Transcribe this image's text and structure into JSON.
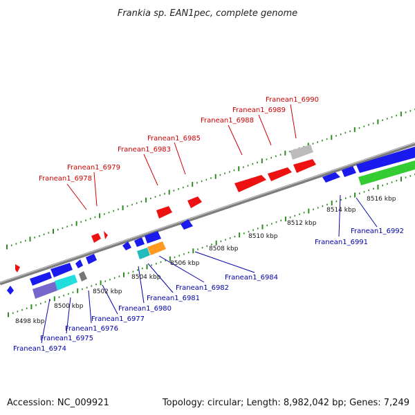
{
  "title": "Frankia sp. EAN1pec, complete genome",
  "footer": {
    "accession": "Accession: NC_009921",
    "summary": "Topology: circular; Length: 8,982,042 bp; Genes: 7,249"
  },
  "colors": {
    "backbone": "#8a8a8a",
    "ticks": "#2e8b22",
    "forward_label": "#cc0000",
    "reverse_label": "#0000aa",
    "red_gene": "#ee1111",
    "blue_gene": "#1a1aee",
    "gray_gene": "#bbbbbb",
    "cyan_gene": "#22dddd",
    "purple_gene": "#7766cc",
    "orange_gene": "#ff9922",
    "teal_gene": "#22bbbb",
    "green_gene": "#33cc33",
    "dark_gray_gene": "#777777"
  },
  "scale_labels": [
    "8498 kbp",
    "8500 kbp",
    "8502 kbp",
    "8504 kbp",
    "8506 kbp",
    "8508 kbp",
    "8510 kbp",
    "8512 kbp",
    "8514 kbp",
    "8516 kbp"
  ],
  "forward_labels": [
    "Franean1_6978",
    "Franean1_6979",
    "Franean1_6983",
    "Franean1_6985",
    "Franean1_6988",
    "Franean1_6989",
    "Franean1_6990"
  ],
  "reverse_labels": [
    "Franean1_6974",
    "Franean1_6975",
    "Franean1_6976",
    "Franean1_6977",
    "Franean1_6980",
    "Franean1_6981",
    "Franean1_6982",
    "Franean1_6984",
    "Franean1_6991",
    "Franean1_6992"
  ]
}
